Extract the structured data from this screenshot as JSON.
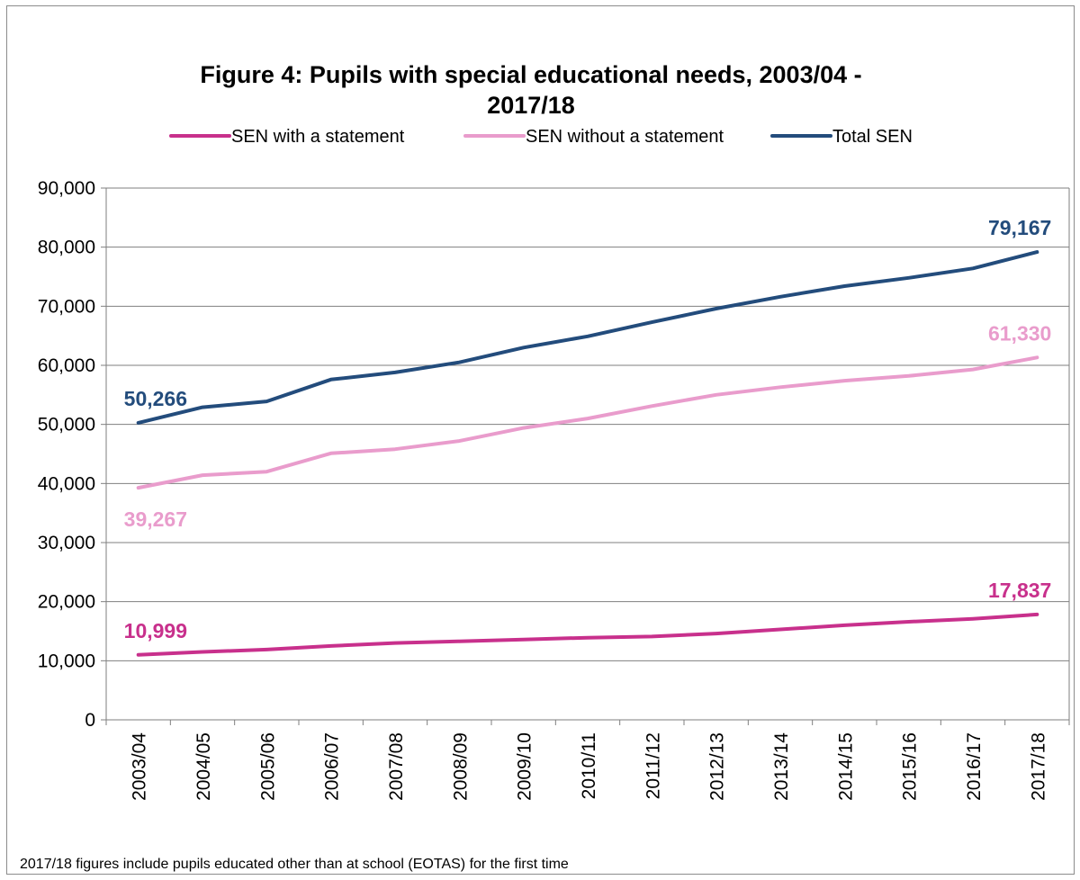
{
  "chart_data": {
    "type": "line",
    "title": "Figure 4: Pupils with special educational needs, 2003/04 - 2017/18",
    "title_lines": [
      "Figure 4: Pupils with special educational needs, 2003/04 -",
      "2017/18"
    ],
    "categories": [
      "2003/04",
      "2004/05",
      "2005/06",
      "2006/07",
      "2007/08",
      "2008/09",
      "2009/10",
      "2010/11",
      "2011/12",
      "2012/13",
      "2013/14",
      "2014/15",
      "2015/16",
      "2016/17",
      "2017/18"
    ],
    "ylim": [
      0,
      90000
    ],
    "yticks": [
      0,
      10000,
      20000,
      30000,
      40000,
      50000,
      60000,
      70000,
      80000,
      90000
    ],
    "ytick_labels": [
      "0",
      "10,000",
      "20,000",
      "30,000",
      "40,000",
      "50,000",
      "60,000",
      "70,000",
      "80,000",
      "90,000"
    ],
    "grid": true,
    "legend_position": "top",
    "series": [
      {
        "name": "SEN with a statement",
        "color": "#c8308c",
        "values": [
          10999,
          11500,
          11900,
          12500,
          13000,
          13300,
          13600,
          13900,
          14100,
          14600,
          15300,
          16000,
          16600,
          17100,
          17837
        ],
        "labels": [
          {
            "index": 0,
            "text": "10,999",
            "pos": "above"
          },
          {
            "index": 14,
            "text": "17,837",
            "pos": "above"
          }
        ]
      },
      {
        "name": "SEN without a statement",
        "color": "#e99ccc",
        "values": [
          39267,
          41400,
          42000,
          45100,
          45800,
          47200,
          49400,
          51000,
          53100,
          55000,
          56300,
          57400,
          58200,
          59300,
          61330
        ],
        "labels": [
          {
            "index": 0,
            "text": "39,267",
            "pos": "below"
          },
          {
            "index": 14,
            "text": "61,330",
            "pos": "above"
          }
        ]
      },
      {
        "name": "Total SEN",
        "color": "#234c7c",
        "values": [
          50266,
          52900,
          53900,
          57600,
          58800,
          60500,
          63000,
          64900,
          67300,
          69600,
          71600,
          73400,
          74800,
          76400,
          79167
        ],
        "labels": [
          {
            "index": 0,
            "text": "50,266",
            "pos": "above"
          },
          {
            "index": 14,
            "text": "79,167",
            "pos": "above"
          }
        ]
      }
    ],
    "footnote": "2017/18 figures include pupils educated other than at school (EOTAS) for the first time"
  }
}
